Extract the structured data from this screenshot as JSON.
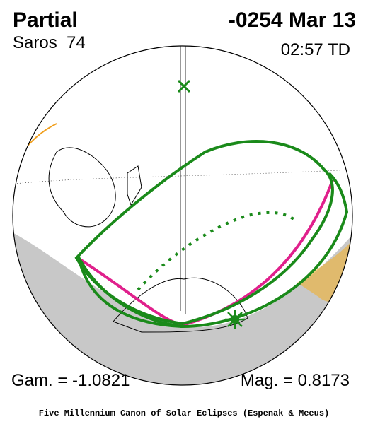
{
  "header": {
    "title": "Partial",
    "date": "-0254 Mar 13",
    "saros": "Saros  74",
    "time": "02:57 TD"
  },
  "footer": {
    "gamma": "Gam. = -1.0821",
    "magnitude": "Mag. = 0.8173",
    "credit": "Five Millennium Canon of Solar Eclipses (Espenak & Meeus)"
  }
}
